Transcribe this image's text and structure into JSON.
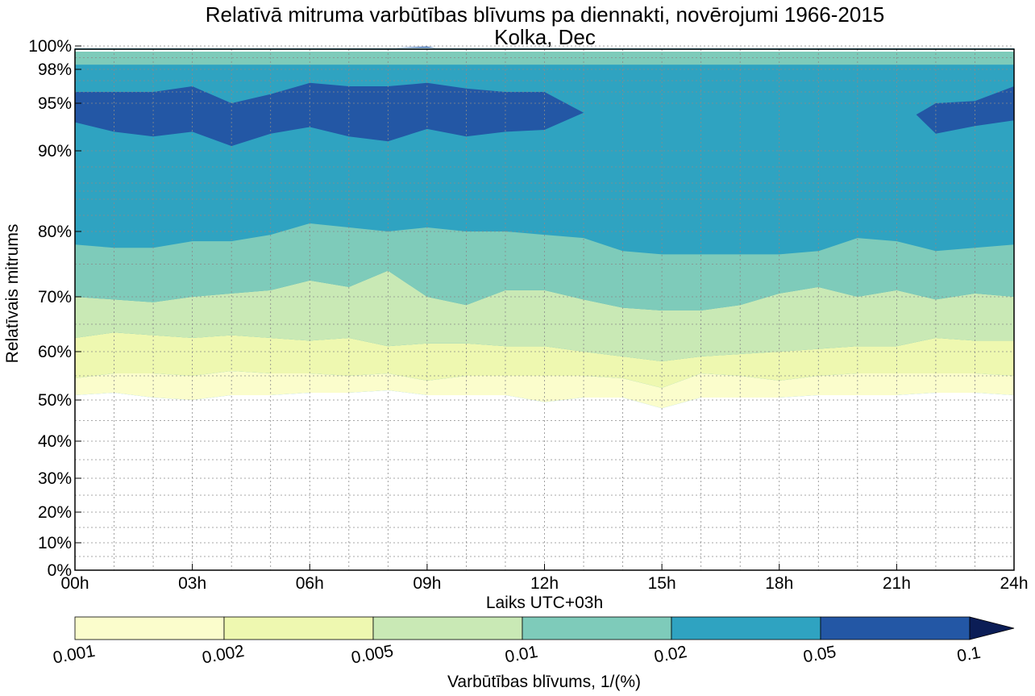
{
  "chart_data": {
    "type": "heatmap",
    "subtype": "filled-contour",
    "title": "Relatīvā mitruma varbūtības blīvums pa diennakti, novērojumi 1966-2015",
    "subtitle": "Kolka, Dec",
    "xlabel": "Laiks UTC+03h",
    "ylabel": "Relatīvais mitrums",
    "xlim": [
      0,
      24
    ],
    "xticks": [
      0,
      3,
      6,
      9,
      12,
      15,
      18,
      21,
      24
    ],
    "xtick_labels": [
      "00h",
      "03h",
      "06h",
      "09h",
      "12h",
      "15h",
      "18h",
      "21h",
      "24h"
    ],
    "yscale": "nonlinear (stretched toward 100%)",
    "yticks": [
      0,
      10,
      20,
      30,
      40,
      50,
      60,
      70,
      80,
      90,
      95,
      98,
      100
    ],
    "ytick_labels": [
      "0%",
      "10%",
      "20%",
      "30%",
      "40%",
      "50%",
      "60%",
      "70%",
      "80%",
      "90%",
      "95%",
      "98%",
      "100%"
    ],
    "grid": true,
    "x": [
      0,
      1,
      2,
      3,
      4,
      5,
      6,
      7,
      8,
      9,
      10,
      11,
      12,
      13,
      14,
      15,
      16,
      17,
      18,
      19,
      20,
      21,
      22,
      23,
      24
    ],
    "level_boundaries": [
      {
        "level": 0.001,
        "rh": [
          51,
          51.5,
          50.5,
          50,
          51,
          51,
          51.5,
          51.5,
          52,
          51,
          51,
          51,
          49.5,
          50.5,
          50.5,
          48,
          50.5,
          50.5,
          50.5,
          51,
          51,
          51,
          51.5,
          51.5,
          51
        ]
      },
      {
        "level": 0.002,
        "rh": [
          54.5,
          55.5,
          55.5,
          55,
          56,
          55.5,
          55.5,
          55,
          55.5,
          54,
          55,
          55,
          55,
          55,
          54.5,
          52.5,
          55.5,
          55,
          54,
          55,
          55.5,
          55.5,
          55.5,
          55.5,
          55
        ]
      },
      {
        "level": 0.005,
        "rh": [
          62.5,
          63.5,
          63,
          62.5,
          63,
          62.5,
          62,
          62.5,
          61,
          61.5,
          61.5,
          61,
          61,
          60,
          59,
          58,
          59,
          59.5,
          60,
          60.5,
          61,
          61,
          62.5,
          62,
          62
        ]
      },
      {
        "level": 0.01,
        "rh": [
          70,
          69.5,
          69,
          70,
          70.5,
          71,
          72.5,
          71.5,
          74,
          70,
          68.5,
          71,
          71,
          69.5,
          68,
          67.5,
          67.5,
          68.5,
          70.5,
          71.5,
          70,
          71,
          69.5,
          70.5,
          70
        ]
      },
      {
        "level": 0.02,
        "rh": [
          78,
          77.5,
          77.5,
          78.5,
          78.5,
          79.5,
          81,
          80.5,
          80,
          80.5,
          80,
          80,
          79.5,
          79,
          77,
          76.5,
          76.5,
          76.5,
          76.5,
          77,
          79,
          78.5,
          77,
          77.5,
          78
        ]
      },
      {
        "level": 0.05,
        "rh_upper": [
          96,
          96,
          96,
          96.5,
          95,
          95.8,
          96.8,
          96.5,
          96.5,
          96.8,
          96.3,
          96,
          96,
          94,
          null,
          null,
          null,
          null,
          null,
          null,
          null,
          null,
          95,
          95.2,
          96.5
        ],
        "rh_lower": [
          93,
          92,
          91.5,
          92,
          90.5,
          91.8,
          92.5,
          91.5,
          91,
          92.3,
          91.5,
          92,
          92.2,
          94,
          null,
          null,
          null,
          null,
          null,
          null,
          null,
          null,
          91.8,
          92.6,
          93.2
        ]
      },
      {
        "level": 0.02,
        "rh_top": 99.2
      },
      {
        "level": 0.1,
        "rh": [
          99.8
        ],
        "note": "tiny patch near 09h"
      }
    ],
    "colorbar": {
      "label": "Varbūtības blīvums, 1/(%)",
      "ticks": [
        "0.001",
        "0.002",
        "0.005",
        "0.01",
        "0.02",
        "0.05",
        "0.1"
      ],
      "colors": [
        "#fbfdcc",
        "#eef8b0",
        "#c9e9b5",
        "#7ecbba",
        "#2fa3c1",
        "#2357a5",
        "#0b1d56"
      ],
      "extend": "max"
    }
  }
}
